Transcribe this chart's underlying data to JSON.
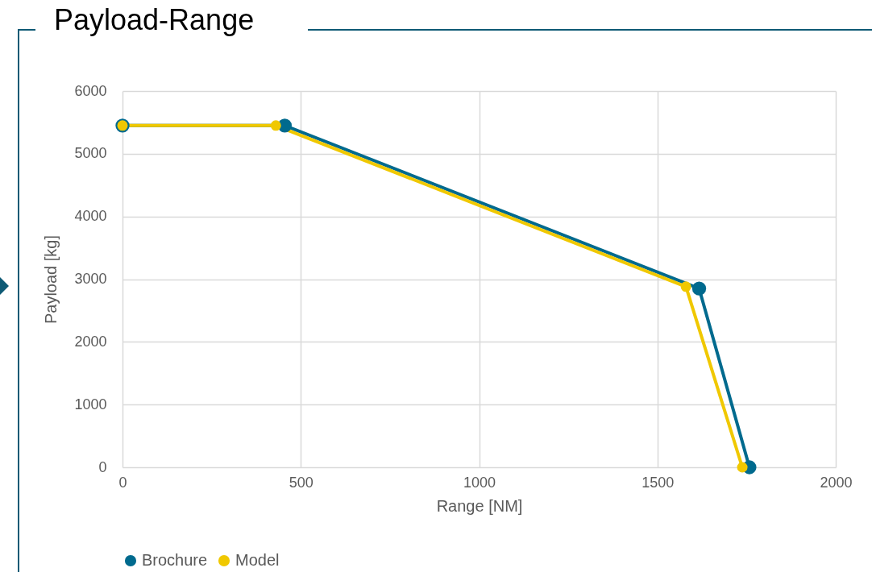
{
  "chart_data": {
    "type": "line",
    "title": "Payload-Range",
    "xlabel": "Range [NM]",
    "ylabel": "Payload [kg]",
    "xlim": [
      0,
      2000
    ],
    "xticks": [
      0,
      500,
      1000,
      1500,
      2000
    ],
    "ylim": [
      0,
      6000
    ],
    "yticks": [
      0,
      1000,
      2000,
      3000,
      4000,
      5000,
      6000
    ],
    "grid": true,
    "legend": "bottom",
    "marker": "circle",
    "line_style": "solid",
    "series": [
      {
        "name": "Brochure",
        "color": "#006a8e",
        "x": [
          0,
          455,
          1617,
          1758
        ],
        "values": [
          5450,
          5450,
          2850,
          0
        ]
      },
      {
        "name": "Model",
        "color": "#f0c800",
        "x": [
          0,
          430,
          1580,
          1738
        ],
        "values": [
          5450,
          5450,
          2880,
          0
        ]
      }
    ]
  }
}
